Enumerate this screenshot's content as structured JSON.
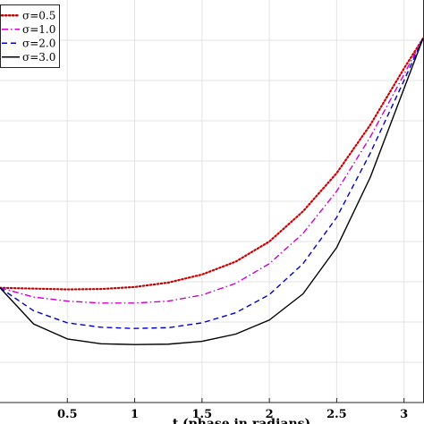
{
  "chart_data": {
    "type": "line",
    "xlabel": "t (phase in radians)",
    "ylabel": "",
    "title": "",
    "xlim": [
      0,
      3.14159
    ],
    "ylim": [
      0,
      1
    ],
    "x_ticks": [
      0.5,
      1,
      1.5,
      2,
      2.5,
      3
    ],
    "x_tick_labels": [
      "0.5",
      "1",
      "1.5",
      "2",
      "2.5",
      "3"
    ],
    "grid": true,
    "legend_position": "top-left",
    "series": [
      {
        "name": "σ=0.5",
        "color": "#cc0000",
        "style": "dotted",
        "x": [
          0,
          0.25,
          0.5,
          0.75,
          1.0,
          1.25,
          1.5,
          1.75,
          2.0,
          2.25,
          2.5,
          2.75,
          3.0,
          3.14159
        ],
        "y": [
          0.285,
          0.283,
          0.281,
          0.282,
          0.287,
          0.298,
          0.318,
          0.35,
          0.4,
          0.475,
          0.57,
          0.69,
          0.83,
          0.905
        ]
      },
      {
        "name": "σ=1.0",
        "color": "#cc00cc",
        "style": "dashdot",
        "x": [
          0,
          0.25,
          0.5,
          0.75,
          1.0,
          1.25,
          1.5,
          1.75,
          2.0,
          2.25,
          2.5,
          2.75,
          3.0,
          3.14159
        ],
        "y": [
          0.285,
          0.262,
          0.252,
          0.247,
          0.247,
          0.252,
          0.267,
          0.296,
          0.345,
          0.42,
          0.525,
          0.66,
          0.815,
          0.905
        ]
      },
      {
        "name": "σ=2.0",
        "color": "#0000cc",
        "style": "dashed",
        "x": [
          0,
          0.25,
          0.5,
          0.75,
          1.0,
          1.25,
          1.5,
          1.75,
          2.0,
          2.25,
          2.5,
          2.75,
          3.0,
          3.14159
        ],
        "y": [
          0.285,
          0.228,
          0.198,
          0.187,
          0.184,
          0.186,
          0.198,
          0.223,
          0.268,
          0.345,
          0.46,
          0.62,
          0.8,
          0.905
        ]
      },
      {
        "name": "σ=3.0",
        "color": "#000000",
        "style": "solid",
        "x": [
          0,
          0.25,
          0.5,
          0.75,
          1.0,
          1.25,
          1.5,
          1.75,
          2.0,
          2.25,
          2.5,
          2.75,
          3.0,
          3.14159
        ],
        "y": [
          0.285,
          0.195,
          0.158,
          0.146,
          0.144,
          0.145,
          0.152,
          0.17,
          0.205,
          0.27,
          0.385,
          0.56,
          0.78,
          0.905
        ]
      }
    ]
  }
}
